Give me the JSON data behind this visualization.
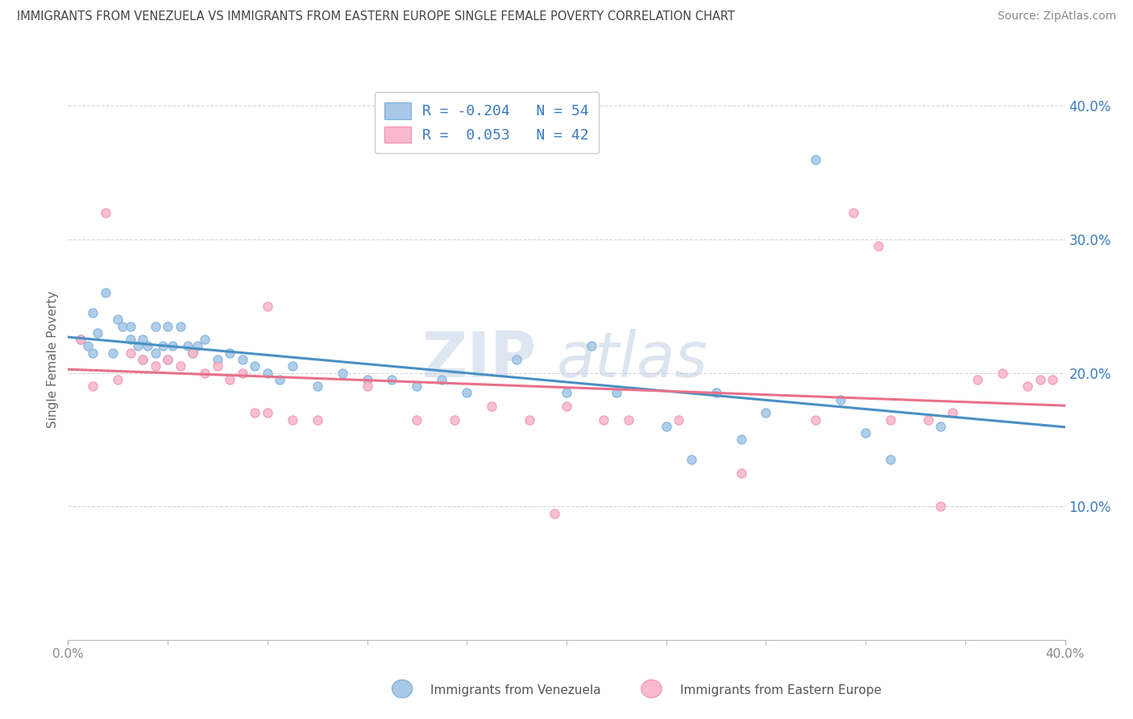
{
  "title": "IMMIGRANTS FROM VENEZUELA VS IMMIGRANTS FROM EASTERN EUROPE SINGLE FEMALE POVERTY CORRELATION CHART",
  "source": "Source: ZipAtlas.com",
  "ylabel": "Single Female Poverty",
  "legend_label1": "Immigrants from Venezuela",
  "legend_label2": "Immigrants from Eastern Europe",
  "R1": "-0.204",
  "N1": "54",
  "R2": "0.053",
  "N2": "42",
  "color1": "#a8c8e8",
  "color2": "#f9b8cc",
  "edge_color1": "#7ab0d8",
  "edge_color2": "#f090b0",
  "trend_color1": "#4a90c4",
  "trend_color2": "#e8708a",
  "background_color": "#ffffff",
  "grid_color": "#cccccc",
  "watermark_color": "#d0dde8",
  "xlim": [
    0.0,
    0.4
  ],
  "ylim": [
    0.0,
    0.42
  ],
  "yticks": [
    0.1,
    0.2,
    0.3,
    0.4
  ],
  "venezuela_x": [
    0.005,
    0.008,
    0.01,
    0.01,
    0.012,
    0.015,
    0.018,
    0.02,
    0.022,
    0.025,
    0.025,
    0.028,
    0.03,
    0.03,
    0.032,
    0.035,
    0.035,
    0.038,
    0.04,
    0.04,
    0.042,
    0.045,
    0.048,
    0.05,
    0.052,
    0.055,
    0.06,
    0.065,
    0.07,
    0.075,
    0.08,
    0.085,
    0.09,
    0.1,
    0.11,
    0.12,
    0.13,
    0.14,
    0.15,
    0.16,
    0.18,
    0.2,
    0.21,
    0.22,
    0.24,
    0.25,
    0.26,
    0.27,
    0.28,
    0.3,
    0.31,
    0.32,
    0.33,
    0.35
  ],
  "venezuela_y": [
    0.225,
    0.22,
    0.245,
    0.215,
    0.23,
    0.26,
    0.215,
    0.24,
    0.235,
    0.235,
    0.225,
    0.22,
    0.225,
    0.21,
    0.22,
    0.235,
    0.215,
    0.22,
    0.235,
    0.21,
    0.22,
    0.235,
    0.22,
    0.215,
    0.22,
    0.225,
    0.21,
    0.215,
    0.21,
    0.205,
    0.2,
    0.195,
    0.205,
    0.19,
    0.2,
    0.195,
    0.195,
    0.19,
    0.195,
    0.185,
    0.21,
    0.185,
    0.22,
    0.185,
    0.16,
    0.135,
    0.185,
    0.15,
    0.17,
    0.36,
    0.18,
    0.155,
    0.135,
    0.16
  ],
  "eastern_x": [
    0.005,
    0.01,
    0.015,
    0.02,
    0.025,
    0.03,
    0.035,
    0.04,
    0.045,
    0.05,
    0.055,
    0.06,
    0.065,
    0.07,
    0.075,
    0.08,
    0.09,
    0.1,
    0.12,
    0.14,
    0.155,
    0.17,
    0.185,
    0.2,
    0.215,
    0.225,
    0.245,
    0.27,
    0.3,
    0.315,
    0.33,
    0.345,
    0.355,
    0.365,
    0.375,
    0.385,
    0.39,
    0.395,
    0.35,
    0.325,
    0.195,
    0.08
  ],
  "eastern_y": [
    0.225,
    0.19,
    0.32,
    0.195,
    0.215,
    0.21,
    0.205,
    0.21,
    0.205,
    0.215,
    0.2,
    0.205,
    0.195,
    0.2,
    0.17,
    0.17,
    0.165,
    0.165,
    0.19,
    0.165,
    0.165,
    0.175,
    0.165,
    0.175,
    0.165,
    0.165,
    0.165,
    0.125,
    0.165,
    0.32,
    0.165,
    0.165,
    0.17,
    0.195,
    0.2,
    0.19,
    0.195,
    0.195,
    0.1,
    0.295,
    0.095,
    0.25
  ]
}
